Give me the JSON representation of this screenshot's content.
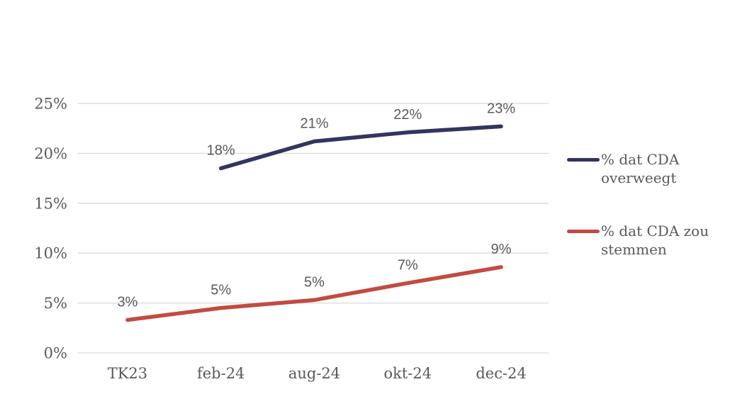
{
  "chart_data": {
    "type": "line",
    "categories": [
      "TK23",
      "feb-24",
      "aug-24",
      "okt-24",
      "dec-24"
    ],
    "y_ticks": [
      "0%",
      "5%",
      "10%",
      "15%",
      "20%",
      "25%"
    ],
    "ylim": [
      0,
      25
    ],
    "ytick_step": 5,
    "grid": true,
    "legend_position": "right",
    "title": "",
    "series": [
      {
        "name": "% dat CDA overweegt",
        "color": "#32355E",
        "values": [
          null,
          18,
          21,
          22,
          23
        ],
        "plot_values": [
          null,
          18.5,
          21.2,
          22.1,
          22.7
        ],
        "point_labels": [
          "",
          "18%",
          "21%",
          "22%",
          "23%"
        ]
      },
      {
        "name": "% dat CDA zou stemmen",
        "color": "#C24B41",
        "values": [
          3,
          5,
          5,
          7,
          9
        ],
        "plot_values": [
          3.3,
          4.5,
          5.3,
          7.0,
          8.6
        ],
        "point_labels": [
          "3%",
          "5%",
          "5%",
          "7%",
          "9%"
        ]
      }
    ],
    "colors": {
      "grid": "#D9D9D9",
      "text": "#595959"
    }
  }
}
